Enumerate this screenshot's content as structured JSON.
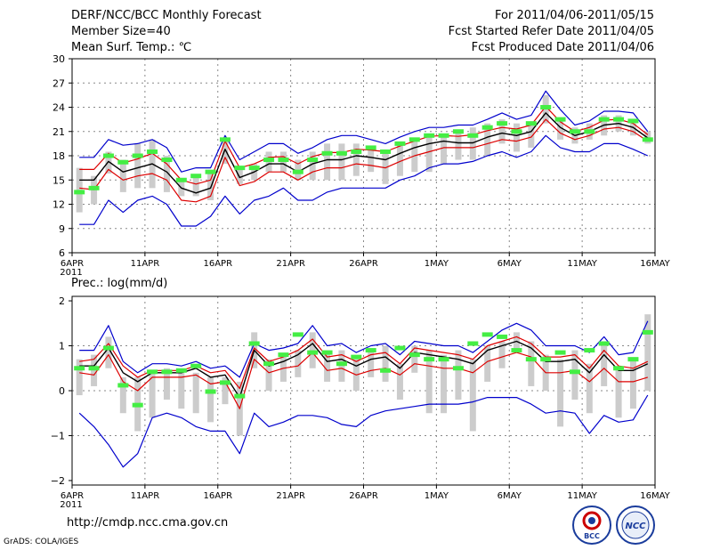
{
  "header": {
    "title": "DERF/NCC/BCC Monthly Forecast",
    "member_size": "Member Size=40",
    "variable": "Mean Surf. Temp.: ℃",
    "forecast_range": "For 2011/04/06-2011/05/15",
    "started_refer": "Fcst Started Refer Date 2011/04/05",
    "produced": "Fcst Produced Date 2011/04/06"
  },
  "footer": {
    "url": "http://cmdp.ncc.cma.gov.cn",
    "credit": "GrADS: COLA/IGES",
    "logo_bcc_text": "BCC",
    "logo_ncc_text": "NCC"
  },
  "colors": {
    "ensemble_mean": "#000000",
    "std_band": "#dd0000",
    "envelope": "#0000cc",
    "member_range": "#cccccc",
    "observed": "#44ee44",
    "grid": "#888888"
  },
  "chart_data": [
    {
      "type": "line",
      "title": "Mean Surf. Temp.: ℃",
      "x_tick_labels": [
        "6APR",
        "11APR",
        "16APR",
        "21APR",
        "26APR",
        "1MAY",
        "6MAY",
        "11MAY",
        "16MAY"
      ],
      "year_label": "2011",
      "ylim": [
        6,
        30
      ],
      "yticks": [
        6,
        9,
        12,
        15,
        18,
        21,
        24,
        27,
        30
      ],
      "ytick_labels": [
        "6",
        "9",
        "12",
        "15",
        "18",
        "21",
        "24",
        "27",
        "30"
      ],
      "days": 40,
      "series": [
        {
          "name": "ensemble mean",
          "values": [
            15.0,
            15.0,
            17.3,
            16.0,
            16.5,
            17.0,
            16.0,
            14.0,
            13.4,
            14.0,
            18.8,
            15.3,
            16.0,
            17.0,
            17.0,
            16.0,
            17.0,
            17.5,
            17.5,
            18.0,
            17.8,
            17.5,
            18.3,
            19.0,
            19.5,
            19.8,
            19.6,
            19.6,
            20.3,
            20.8,
            20.5,
            21.0,
            23.3,
            21.5,
            20.5,
            21.0,
            21.8,
            22.0,
            21.5,
            20.2
          ]
        },
        {
          "name": "mean + std",
          "values": [
            16.3,
            16.3,
            18.3,
            17.1,
            17.6,
            18.3,
            17.0,
            15.0,
            14.5,
            15.0,
            19.8,
            16.5,
            17.0,
            17.8,
            17.9,
            17.0,
            17.9,
            18.4,
            18.4,
            18.8,
            18.7,
            18.5,
            19.2,
            19.8,
            20.4,
            20.5,
            20.4,
            20.6,
            21.1,
            21.5,
            21.3,
            21.8,
            24.1,
            22.2,
            21.0,
            21.5,
            22.4,
            22.5,
            22.0,
            20.6
          ]
        },
        {
          "name": "mean - std",
          "values": [
            14.0,
            13.8,
            16.3,
            15.0,
            15.5,
            15.8,
            15.0,
            12.5,
            12.3,
            13.0,
            17.8,
            14.3,
            14.8,
            16.0,
            16.0,
            15.0,
            16.0,
            16.5,
            16.5,
            17.0,
            16.8,
            16.5,
            17.3,
            18.0,
            18.5,
            19.0,
            19.0,
            19.0,
            19.5,
            20.0,
            19.8,
            20.3,
            22.5,
            20.8,
            20.0,
            20.5,
            21.3,
            21.5,
            21.0,
            19.8
          ]
        },
        {
          "name": "ensemble max",
          "values": [
            17.8,
            17.8,
            20.0,
            19.3,
            19.5,
            20.0,
            19.0,
            16.0,
            16.5,
            16.5,
            20.5,
            17.5,
            18.5,
            19.5,
            19.5,
            18.3,
            19.0,
            20.0,
            20.5,
            20.5,
            20.0,
            19.5,
            20.3,
            21.0,
            21.5,
            21.5,
            21.8,
            21.8,
            22.5,
            23.3,
            22.5,
            23.0,
            26.0,
            23.7,
            21.8,
            22.3,
            23.5,
            23.5,
            23.3,
            21.0
          ]
        },
        {
          "name": "ensemble min",
          "values": [
            9.5,
            9.5,
            12.5,
            11.0,
            12.5,
            13.0,
            12.0,
            9.3,
            9.3,
            10.5,
            13.0,
            10.8,
            12.5,
            13.0,
            14.0,
            12.5,
            12.5,
            13.5,
            14.0,
            14.0,
            14.0,
            14.0,
            15.0,
            15.5,
            16.5,
            17.0,
            17.0,
            17.3,
            18.0,
            18.5,
            17.8,
            18.5,
            20.5,
            19.0,
            18.5,
            18.5,
            19.5,
            19.5,
            18.8,
            18.0
          ]
        },
        {
          "name": "member range low",
          "values": [
            11.0,
            12.0,
            15.8,
            13.5,
            14.0,
            14.0,
            13.5,
            13.0,
            13.0,
            12.5,
            17.0,
            14.5,
            15.0,
            16.0,
            16.0,
            15.0,
            15.0,
            15.0,
            15.0,
            15.5,
            16.0,
            14.5,
            15.5,
            16.0,
            16.0,
            17.0,
            17.5,
            17.5,
            18.0,
            19.5,
            18.5,
            19.0,
            22.0,
            20.0,
            19.5,
            20.0,
            20.5,
            21.0,
            20.5,
            19.5
          ]
        },
        {
          "name": "member range high",
          "values": [
            16.5,
            15.5,
            18.5,
            17.5,
            19.5,
            20.0,
            18.0,
            14.8,
            15.5,
            16.0,
            20.0,
            16.5,
            17.0,
            18.5,
            18.5,
            17.5,
            18.5,
            19.5,
            19.5,
            19.5,
            19.0,
            18.5,
            19.5,
            20.0,
            20.5,
            20.5,
            21.0,
            21.5,
            22.0,
            22.5,
            22.0,
            22.0,
            25.5,
            22.5,
            21.5,
            22.0,
            23.0,
            23.0,
            22.0,
            21.0
          ]
        },
        {
          "name": "observed",
          "values": [
            13.5,
            14.0,
            18.0,
            17.2,
            18.0,
            18.5,
            17.5,
            15.0,
            15.5,
            16.0,
            20.0,
            16.5,
            16.5,
            17.5,
            17.5,
            16.0,
            17.5,
            18.3,
            18.3,
            18.5,
            19.0,
            18.5,
            19.5,
            20.0,
            20.5,
            20.5,
            21.0,
            20.5,
            21.5,
            22.0,
            21.0,
            22.0,
            24.0,
            22.5,
            21.0,
            21.0,
            22.5,
            22.5,
            22.3,
            20.0
          ]
        }
      ]
    },
    {
      "type": "line",
      "title": "Prec.: log(mm/d)",
      "x_tick_labels": [
        "6APR",
        "11APR",
        "16APR",
        "21APR",
        "26APR",
        "1MAY",
        "6MAY",
        "11MAY",
        "16MAY"
      ],
      "year_label": "2011",
      "ylim": [
        -2.1,
        2.1
      ],
      "yticks": [
        -2,
        -1,
        0,
        1,
        2
      ],
      "ytick_labels": [
        "−2",
        "−1",
        "0",
        "1",
        "2"
      ],
      "days": 40,
      "series": [
        {
          "name": "ensemble mean",
          "values": [
            0.55,
            0.55,
            0.95,
            0.4,
            0.2,
            0.4,
            0.4,
            0.4,
            0.5,
            0.3,
            0.35,
            -0.15,
            0.9,
            0.55,
            0.65,
            0.8,
            1.05,
            0.65,
            0.7,
            0.55,
            0.7,
            0.75,
            0.5,
            0.85,
            0.8,
            0.75,
            0.7,
            0.6,
            0.9,
            1.0,
            1.1,
            0.95,
            0.65,
            0.65,
            0.7,
            0.4,
            0.8,
            0.45,
            0.45,
            0.6
          ]
        },
        {
          "name": "mean + std",
          "values": [
            0.65,
            0.7,
            1.05,
            0.55,
            0.3,
            0.45,
            0.45,
            0.45,
            0.55,
            0.4,
            0.45,
            0.05,
            0.95,
            0.65,
            0.75,
            0.9,
            1.15,
            0.75,
            0.8,
            0.65,
            0.8,
            0.85,
            0.6,
            0.95,
            0.9,
            0.85,
            0.8,
            0.7,
            1.0,
            1.1,
            1.2,
            1.05,
            0.75,
            0.75,
            0.8,
            0.5,
            0.9,
            0.55,
            0.5,
            0.65
          ]
        },
        {
          "name": "mean - std",
          "values": [
            0.4,
            0.35,
            0.8,
            0.2,
            0.0,
            0.3,
            0.3,
            0.3,
            0.35,
            0.15,
            0.2,
            -0.4,
            0.7,
            0.4,
            0.5,
            0.55,
            0.85,
            0.45,
            0.5,
            0.35,
            0.45,
            0.5,
            0.35,
            0.6,
            0.55,
            0.5,
            0.5,
            0.4,
            0.65,
            0.75,
            0.85,
            0.75,
            0.4,
            0.4,
            0.45,
            0.2,
            0.5,
            0.2,
            0.2,
            0.3
          ]
        },
        {
          "name": "ensemble max",
          "values": [
            0.9,
            0.9,
            1.45,
            0.65,
            0.4,
            0.6,
            0.6,
            0.55,
            0.65,
            0.5,
            0.55,
            0.3,
            1.05,
            0.9,
            0.95,
            1.05,
            1.45,
            1.0,
            1.05,
            0.85,
            1.0,
            1.05,
            0.8,
            1.1,
            1.05,
            1.0,
            1.0,
            0.85,
            1.1,
            1.35,
            1.5,
            1.35,
            1.0,
            1.0,
            1.0,
            0.85,
            1.2,
            0.8,
            0.85,
            1.55
          ]
        },
        {
          "name": "ensemble min",
          "values": [
            -0.5,
            -0.8,
            -1.2,
            -1.7,
            -1.4,
            -0.6,
            -0.5,
            -0.6,
            -0.8,
            -0.9,
            -0.9,
            -1.4,
            -0.5,
            -0.8,
            -0.7,
            -0.55,
            -0.55,
            -0.6,
            -0.75,
            -0.8,
            -0.55,
            -0.45,
            -0.4,
            -0.35,
            -0.3,
            -0.3,
            -0.3,
            -0.25,
            -0.15,
            -0.15,
            -0.15,
            -0.3,
            -0.5,
            -0.45,
            -0.5,
            -0.95,
            -0.55,
            -0.7,
            -0.65,
            -0.1
          ]
        },
        {
          "name": "member range low",
          "values": [
            -0.1,
            0.1,
            0.5,
            -0.5,
            -0.9,
            -0.6,
            -0.2,
            -0.4,
            -0.5,
            -0.7,
            -0.3,
            -1.0,
            0.5,
            0.0,
            0.2,
            0.3,
            0.5,
            0.2,
            0.2,
            0.0,
            0.3,
            0.2,
            -0.2,
            0.4,
            -0.5,
            -0.5,
            -0.2,
            -0.9,
            0.2,
            0.5,
            0.9,
            0.1,
            0.0,
            -0.8,
            -0.2,
            -0.5,
            0.1,
            -0.6,
            -0.4,
            0.0
          ]
        },
        {
          "name": "member range high",
          "values": [
            0.7,
            0.8,
            1.2,
            0.3,
            0.3,
            0.4,
            0.5,
            0.4,
            0.4,
            0.3,
            0.3,
            0.2,
            1.3,
            0.7,
            0.8,
            0.9,
            1.3,
            0.9,
            0.9,
            0.7,
            0.9,
            1.0,
            0.6,
            1.0,
            0.9,
            0.8,
            0.9,
            0.7,
            1.0,
            1.1,
            1.3,
            1.1,
            0.8,
            0.7,
            0.9,
            0.6,
            1.0,
            0.5,
            0.7,
            1.7
          ]
        },
        {
          "name": "observed",
          "values": [
            0.5,
            0.5,
            0.95,
            0.12,
            -0.32,
            0.42,
            0.42,
            0.45,
            0.55,
            -0.02,
            0.18,
            -0.12,
            1.05,
            0.6,
            0.8,
            1.25,
            0.85,
            0.85,
            0.6,
            0.75,
            0.9,
            0.45,
            0.95,
            0.8,
            0.7,
            0.7,
            0.5,
            1.05,
            1.25,
            1.2,
            0.9,
            0.7,
            0.7,
            0.85,
            0.42,
            0.9,
            1.05,
            0.5,
            0.7,
            1.3
          ]
        }
      ]
    }
  ]
}
